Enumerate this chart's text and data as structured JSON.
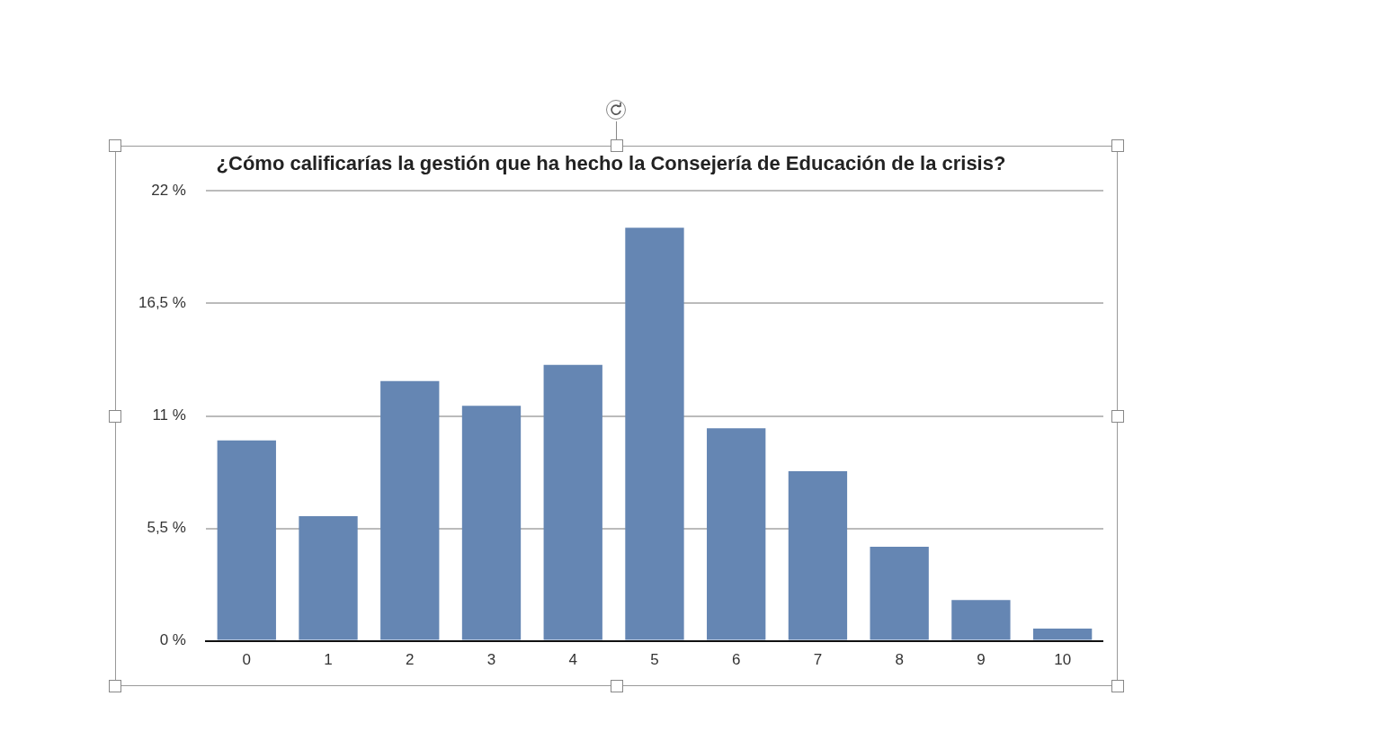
{
  "chart_data": {
    "type": "bar",
    "title": "¿Cómo calificarías la gestión que ha hecho la Consejería de Educación de la crisis?",
    "categories": [
      "0",
      "1",
      "2",
      "3",
      "4",
      "5",
      "6",
      "7",
      "8",
      "9",
      "10"
    ],
    "values": [
      9.8,
      6.1,
      12.7,
      11.5,
      13.5,
      20.2,
      10.4,
      8.3,
      4.6,
      2.0,
      0.6
    ],
    "color": "#6586b3",
    "ylim": [
      0,
      22
    ],
    "yticks": [
      {
        "value": 0,
        "label": "0 %"
      },
      {
        "value": 5.5,
        "label": "5,5 %"
      },
      {
        "value": 11,
        "label": "11 %"
      },
      {
        "value": 16.5,
        "label": "16,5 %"
      },
      {
        "value": 22,
        "label": "22 %"
      }
    ],
    "grid": "y",
    "legend": false
  }
}
